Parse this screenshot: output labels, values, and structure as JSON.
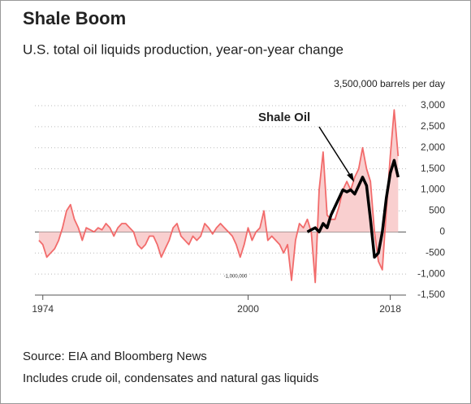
{
  "chart_data": {
    "type": "line",
    "title": "Shale Boom",
    "subtitle": "U.S. total oil liquids production, year-on-year change",
    "y_axis_label": "3,500,000 barrels per day",
    "annotation": "-1,000,000",
    "source": "Source: EIA and Bloomberg News",
    "note": "Includes crude oil, condensates and natural gas liquids",
    "xlim": [
      1973,
      2020
    ],
    "xticks": [
      1974,
      2000,
      2018
    ],
    "ylim": [
      -1500,
      3000
    ],
    "yticks": [
      {
        "value": 3000,
        "label": "3,000"
      },
      {
        "value": 2500,
        "label": "2,500"
      },
      {
        "value": 2000,
        "label": "2,000"
      },
      {
        "value": 1500,
        "label": "1,500"
      },
      {
        "value": 1000,
        "label": "1,000"
      },
      500,
      0,
      -500,
      {
        "value": -1000,
        "label": "-1,000"
      },
      {
        "value": -1500,
        "label": "-1,500"
      }
    ],
    "grid": true,
    "series": [
      {
        "color": "#f26b6b",
        "fill": "#f9cfcf",
        "x": [
          1973.5,
          1974,
          1974.5,
          1975,
          1975.5,
          1976,
          1976.5,
          1977,
          1977.5,
          1978,
          1978.5,
          1979,
          1979.5,
          1980,
          1980.5,
          1981,
          1981.5,
          1982,
          1982.5,
          1983,
          1983.5,
          1984,
          1984.5,
          1985,
          1985.5,
          1986,
          1986.5,
          1987,
          1987.5,
          1988,
          1988.5,
          1989,
          1989.5,
          1990,
          1990.5,
          1991,
          1991.5,
          1992,
          1992.5,
          1993,
          1993.5,
          1994,
          1994.5,
          1995,
          1995.5,
          1996,
          1996.5,
          1997,
          1997.5,
          1998,
          1998.5,
          1999,
          1999.5,
          2000,
          2000.5,
          2001,
          2001.5,
          2002,
          2002.5,
          2003,
          2003.5,
          2004,
          2004.5,
          2005,
          2005.5,
          2006,
          2006.5,
          2007,
          2007.5,
          2008,
          2008.5,
          2009,
          2009.5,
          2010,
          2010.5,
          2011,
          2011.5,
          2012,
          2012.5,
          2013,
          2013.5,
          2014,
          2014.5,
          2015,
          2015.5,
          2016,
          2016.5,
          2017,
          2017.5,
          2018,
          2018.5,
          2019
        ],
        "values": [
          -200,
          -300,
          -600,
          -500,
          -400,
          -200,
          100,
          500,
          650,
          300,
          100,
          -200,
          100,
          50,
          0,
          100,
          50,
          200,
          100,
          -100,
          100,
          200,
          200,
          100,
          0,
          -300,
          -400,
          -300,
          -100,
          -100,
          -300,
          -600,
          -400,
          -200,
          100,
          200,
          -100,
          -200,
          -300,
          -100,
          -200,
          -100,
          200,
          100,
          -50,
          100,
          200,
          100,
          0,
          -100,
          -300,
          -600,
          -300,
          100,
          -200,
          0,
          100,
          500,
          -200,
          -100,
          -200,
          -300,
          -500,
          -300,
          -1150,
          -200,
          200,
          100,
          300,
          0,
          -1200,
          1000,
          1900,
          400,
          300,
          300,
          600,
          1000,
          1200,
          1000,
          1300,
          1500,
          2000,
          1500,
          1200,
          0,
          -700,
          -900,
          500,
          1800,
          2900,
          1800
        ]
      },
      {
        "name": "Shale Oil",
        "color": "#000000",
        "x": [
          2007.5,
          2008,
          2008.5,
          2009,
          2009.5,
          2010,
          2010.5,
          2011,
          2011.5,
          2012,
          2012.5,
          2013,
          2013.5,
          2014,
          2014.5,
          2015,
          2015.5,
          2016,
          2016.5,
          2017,
          2017.5,
          2018,
          2018.5,
          2019
        ],
        "values": [
          0,
          50,
          100,
          0,
          200,
          100,
          400,
          600,
          800,
          1000,
          950,
          1000,
          900,
          1100,
          1300,
          1100,
          300,
          -600,
          -500,
          0,
          800,
          1400,
          1700,
          1300
        ]
      }
    ]
  }
}
